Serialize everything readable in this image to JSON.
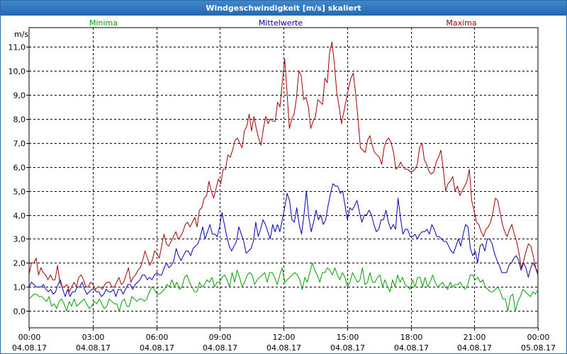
{
  "window": {
    "title": "Windgeschwindigkeit [m/s] skaliert"
  },
  "chart_data": {
    "type": "line",
    "ylabel": "m/s",
    "ylim": [
      -0.7,
      11.8
    ],
    "y_ticks": [
      "0,0",
      "1,0",
      "2,0",
      "3,0",
      "4,0",
      "5,0",
      "6,0",
      "7,0",
      "8,0",
      "9,0",
      "10,0",
      "11,0"
    ],
    "x_ticks": [
      {
        "time": "00:00",
        "date": "04.08.17"
      },
      {
        "time": "03:00",
        "date": "04.08.17"
      },
      {
        "time": "06:00",
        "date": "04.08.17"
      },
      {
        "time": "09:00",
        "date": "04.08.17"
      },
      {
        "time": "12:00",
        "date": "04.08.17"
      },
      {
        "time": "15:00",
        "date": "04.08.17"
      },
      {
        "time": "18:00",
        "date": "04.08.17"
      },
      {
        "time": "21:00",
        "date": "04.08.17"
      },
      {
        "time": "00:00",
        "date": "05.08.17"
      }
    ],
    "x_range": [
      "04.08.17 00:00",
      "05.08.17 00:00"
    ],
    "sample_interval_minutes": 10,
    "grid": true,
    "legend_position": "top",
    "series": [
      {
        "name": "Minima",
        "color": "#00a000",
        "values": [
          0.5,
          0.6,
          0.7,
          0.7,
          0.6,
          0.6,
          0.5,
          0.4,
          0.6,
          0.2,
          0.3,
          0.1,
          0.4,
          0.5,
          0.3,
          0.0,
          0.4,
          0.2,
          0.5,
          0.2,
          0.3,
          0.4,
          0.5,
          0.3,
          0.1,
          0.2,
          0.4,
          0.3,
          0.5,
          0.3,
          0.1,
          0.2,
          0.5,
          0.4,
          0.3,
          0.3,
          0.0,
          0.4,
          0.5,
          0.2,
          0.2,
          0.6,
          0.5,
          0.4,
          0.5,
          0.5,
          0.4,
          0.5,
          0.8,
          1.0,
          0.9,
          0.7,
          0.7,
          0.8,
          0.9,
          1.1,
          1.0,
          1.3,
          1.0,
          1.2,
          0.9,
          1.0,
          1.4,
          1.5,
          1.2,
          1.0,
          0.8,
          0.8,
          1.2,
          1.0,
          1.1,
          1.3,
          1.2,
          1.4,
          1.0,
          1.2,
          1.2,
          1.4,
          1.5,
          1.3,
          1.0,
          1.6,
          1.2,
          1.7,
          1.4,
          1.0,
          1.2,
          1.5,
          1.6,
          1.5,
          1.1,
          1.3,
          1.4,
          1.5,
          1.6,
          1.2,
          1.6,
          1.6,
          1.4,
          1.1,
          1.5,
          1.8,
          1.2,
          1.3,
          1.4,
          1.5,
          1.6,
          1.5,
          1.3,
          0.9,
          1.4,
          1.2,
          1.6,
          2.0,
          1.7,
          1.5,
          1.2,
          1.6,
          1.6,
          1.8,
          1.7,
          1.5,
          1.8,
          1.5,
          1.3,
          1.6,
          1.4,
          1.0,
          1.2,
          1.6,
          1.4,
          1.2,
          1.3,
          1.8,
          1.1,
          1.2,
          1.6,
          1.2,
          1.2,
          1.4,
          1.5,
          1.0,
          1.3,
          1.0,
          0.8,
          1.3,
          1.0,
          1.5,
          1.2,
          1.4,
          1.1,
          1.0,
          0.9,
          1.3,
          1.0,
          1.4,
          1.4,
          1.0,
          1.4,
          1.0,
          1.2,
          1.5,
          1.2,
          1.0,
          1.1,
          1.2,
          1.0,
          0.9,
          1.2,
          1.0,
          1.1,
          1.1,
          1.2,
          1.0,
          0.9,
          1.1,
          1.5,
          1.5,
          1.3,
          1.4,
          1.2,
          1.3,
          1.0,
          0.9,
          0.8,
          0.8,
          0.9,
          1.0,
          0.8,
          0.5,
          0.5,
          0.0,
          0.6,
          0.7,
          0.0,
          0.4,
          0.6,
          0.9,
          0.8,
          0.7,
          0.6,
          0.8,
          0.7,
          0.9
        ]
      },
      {
        "name": "Mittelwerte",
        "color": "#0000b0",
        "values": [
          1.0,
          1.2,
          1.1,
          1.0,
          1.0,
          1.0,
          1.1,
          0.9,
          0.8,
          0.9,
          0.7,
          0.8,
          1.1,
          1.3,
          0.9,
          0.6,
          0.9,
          0.6,
          0.8,
          0.8,
          1.0,
          1.0,
          1.2,
          0.9,
          0.7,
          0.8,
          0.9,
          0.9,
          0.8,
          0.8,
          0.6,
          0.7,
          0.9,
          0.8,
          0.8,
          0.9,
          0.6,
          0.9,
          0.9,
          0.7,
          0.9,
          1.1,
          1.1,
          0.9,
          1.1,
          1.2,
          1.3,
          1.5,
          1.5,
          1.3,
          1.4,
          1.3,
          1.5,
          1.6,
          1.5,
          1.5,
          1.8,
          2.0,
          1.8,
          1.9,
          2.1,
          2.6,
          2.3,
          2.1,
          2.3,
          2.5,
          2.5,
          2.3,
          2.6,
          2.7,
          2.8,
          3.1,
          3.5,
          3.0,
          3.3,
          3.6,
          3.2,
          3.2,
          3.1,
          3.5,
          4.1,
          3.6,
          3.1,
          2.7,
          2.5,
          2.7,
          2.9,
          3.5,
          3.2,
          2.9,
          2.4,
          2.5,
          2.6,
          2.9,
          3.7,
          3.1,
          3.4,
          3.8,
          3.6,
          3.3,
          3.0,
          3.6,
          3.3,
          3.6,
          3.3,
          3.8,
          4.3,
          4.9,
          4.6,
          3.8,
          3.7,
          4.3,
          3.6,
          3.2,
          4.0,
          5.0,
          3.9,
          3.3,
          3.7,
          4.2,
          3.8,
          4.0,
          3.6,
          3.8,
          4.4,
          4.9,
          5.3,
          5.2,
          5.2,
          4.9,
          5.0,
          4.4,
          3.8,
          4.3,
          4.2,
          4.4,
          4.6,
          4.1,
          3.7,
          4.0,
          4.0,
          4.2,
          4.0,
          3.6,
          3.3,
          3.4,
          3.8,
          3.8,
          4.2,
          3.7,
          3.4,
          3.6,
          3.4,
          4.7,
          3.9,
          3.2,
          3.4,
          3.4,
          3.1,
          3.1,
          3.2,
          3.0,
          3.2,
          3.3,
          3.3,
          3.4,
          3.2,
          3.6,
          3.4,
          3.1,
          3.1,
          3.0,
          2.9,
          2.9,
          2.7,
          2.5,
          2.4,
          2.7,
          3.0,
          2.7,
          3.2,
          3.6,
          3.5,
          2.6,
          2.3,
          2.5,
          2.0,
          2.7,
          2.8,
          2.5,
          3.0,
          3.0,
          2.8,
          2.4,
          2.1,
          1.9,
          1.6,
          1.6,
          1.6,
          1.9,
          2.0,
          2.2,
          2.3,
          2.1,
          1.7,
          2.0,
          1.8,
          1.4,
          1.8,
          2.0,
          1.8,
          1.5
        ]
      },
      {
        "name": "Maxima",
        "color": "#a00000",
        "values": [
          1.5,
          2.0,
          2.0,
          2.2,
          1.5,
          1.8,
          1.6,
          1.5,
          1.3,
          1.5,
          1.3,
          1.3,
          1.9,
          1.2,
          1.0,
          1.0,
          1.1,
          0.8,
          1.0,
          1.2,
          1.0,
          1.4,
          1.5,
          1.3,
          1.0,
          1.0,
          1.2,
          1.1,
          0.9,
          1.0,
          1.0,
          0.9,
          1.1,
          1.2,
          1.2,
          1.0,
          1.0,
          1.2,
          1.4,
          1.1,
          1.2,
          1.5,
          1.8,
          1.2,
          1.4,
          1.5,
          1.7,
          1.8,
          2.1,
          2.5,
          2.2,
          1.9,
          2.1,
          2.5,
          2.4,
          2.2,
          2.7,
          3.2,
          2.8,
          2.7,
          2.9,
          3.1,
          3.3,
          3.0,
          3.1,
          3.3,
          3.6,
          3.7,
          3.5,
          3.7,
          3.9,
          3.5,
          4.2,
          4.3,
          4.7,
          4.8,
          5.4,
          5.0,
          4.7,
          5.1,
          5.5,
          5.3,
          5.9,
          5.9,
          6.5,
          6.4,
          6.7,
          7.1,
          7.2,
          7.0,
          6.8,
          7.5,
          7.7,
          8.2,
          7.5,
          8.1,
          7.6,
          7.2,
          6.9,
          7.6,
          8.1,
          7.8,
          8.0,
          7.9,
          7.9,
          8.7,
          8.5,
          9.5,
          10.5,
          9.1,
          7.6,
          8.0,
          8.2,
          8.9,
          10.0,
          9.8,
          8.8,
          8.9,
          8.5,
          7.6,
          7.9,
          8.1,
          8.8,
          8.7,
          8.6,
          9.7,
          9.5,
          10.8,
          11.2,
          10.3,
          9.1,
          8.5,
          7.8,
          8.3,
          8.8,
          9.3,
          9.7,
          9.9,
          9.0,
          8.0,
          6.8,
          6.7,
          6.6,
          7.1,
          7.3,
          6.9,
          6.6,
          6.5,
          6.4,
          6.1,
          6.8,
          7.1,
          7.2,
          7.0,
          6.6,
          5.9,
          6.0,
          6.2,
          6.0,
          5.9,
          5.9,
          5.8,
          5.8,
          5.9,
          6.1,
          6.8,
          7.0,
          6.3,
          6.1,
          5.8,
          5.7,
          5.8,
          6.2,
          6.4,
          6.7,
          5.9,
          5.0,
          5.3,
          5.4,
          5.6,
          5.0,
          5.2,
          4.8,
          5.0,
          5.2,
          5.4,
          5.9,
          4.6,
          4.2,
          3.7,
          3.6,
          3.3,
          3.1,
          3.4,
          3.5,
          3.7,
          4.1,
          4.7,
          4.6,
          4.1,
          3.6,
          3.3,
          3.1,
          3.4,
          3.6,
          3.2,
          2.9,
          2.4,
          1.8,
          2.1,
          2.5,
          2.8,
          2.7,
          2.3,
          1.8,
          1.6
        ]
      }
    ]
  }
}
